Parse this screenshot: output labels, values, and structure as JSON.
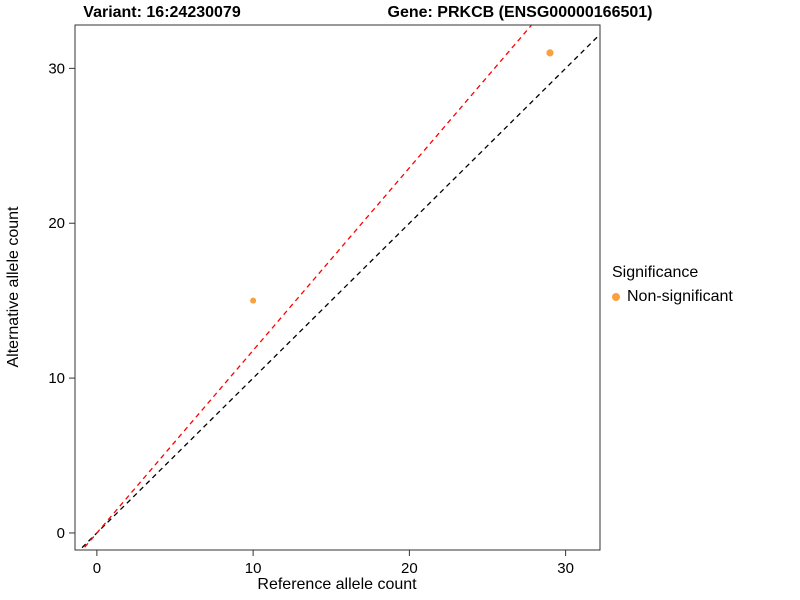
{
  "chart_data": {
    "type": "scatter",
    "title_left": "Variant: 16:24230079",
    "title_right": "Gene: PRKCB (ENSG00000166501)",
    "xlabel": "Reference allele count",
    "ylabel": "Alternative allele count",
    "xlim": [
      -1.4,
      32.2
    ],
    "ylim": [
      -1.1,
      32.8
    ],
    "xticks": [
      0,
      10,
      20,
      30
    ],
    "yticks": [
      0,
      10,
      20,
      30
    ],
    "grid": false,
    "panel_border_color": "#333333",
    "point_color": "#F9A03F",
    "points": [
      {
        "x": 10,
        "y": 15,
        "r": 3.0,
        "series": "Non-significant"
      },
      {
        "x": 29,
        "y": 31,
        "r": 3.6,
        "series": "Non-significant"
      }
    ],
    "lines": [
      {
        "name": "identity-line",
        "slope": 1.0,
        "intercept": 0,
        "color": "#000000",
        "dashed": true
      },
      {
        "name": "ratio-line",
        "slope": 1.179,
        "intercept": 0,
        "color": "#FF0000",
        "dashed": true
      }
    ],
    "legend": {
      "title": "Significance",
      "position": "right",
      "entries": [
        {
          "label": "Non-significant",
          "color": "#F9A03F"
        }
      ]
    }
  }
}
